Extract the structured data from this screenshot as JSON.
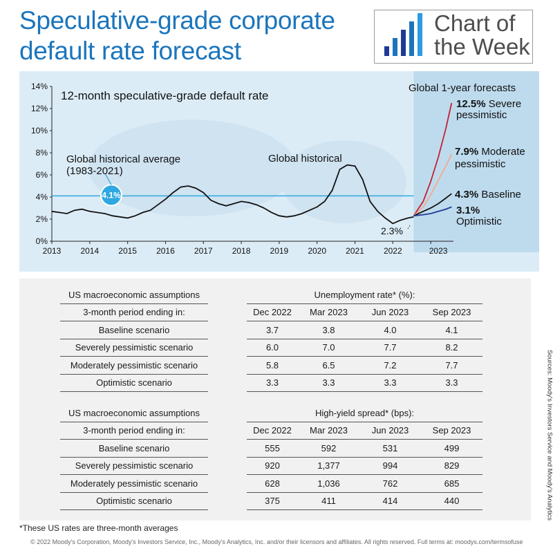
{
  "title": "Speculative-grade corporate default rate forecast",
  "badge": {
    "line1": "Chart of",
    "line2": "the Week"
  },
  "chart_data": {
    "type": "line",
    "title": "12-month speculative-grade default rate",
    "forecast_title": "Global 1-year forecasts",
    "ylim": [
      0,
      14
    ],
    "xlim": [
      2013,
      2023.6
    ],
    "yticks": [
      "0%",
      "2%",
      "4%",
      "6%",
      "8%",
      "10%",
      "12%",
      "14%"
    ],
    "xticks": [
      "2013",
      "2014",
      "2015",
      "2016",
      "2017",
      "2018",
      "2019",
      "2020",
      "2021",
      "2022",
      "2023"
    ],
    "historical_average": {
      "label_line1": "Global historical average",
      "label_line2": "(1983-2021)",
      "value": 4.1,
      "value_label": "4.1%"
    },
    "historical_label": "Global historical",
    "low_label": "2.3%",
    "series": [
      {
        "name": "Global historical",
        "color": "#111111",
        "x": [
          2013.0,
          2013.2,
          2013.4,
          2013.6,
          2013.8,
          2014.0,
          2014.2,
          2014.4,
          2014.6,
          2014.8,
          2015.0,
          2015.2,
          2015.4,
          2015.6,
          2015.8,
          2016.0,
          2016.2,
          2016.4,
          2016.6,
          2016.8,
          2017.0,
          2017.2,
          2017.4,
          2017.6,
          2017.8,
          2018.0,
          2018.2,
          2018.4,
          2018.6,
          2018.8,
          2019.0,
          2019.2,
          2019.4,
          2019.6,
          2019.8,
          2020.0,
          2020.2,
          2020.4,
          2020.6,
          2020.8,
          2021.0,
          2021.2,
          2021.4,
          2021.6,
          2021.8,
          2022.0,
          2022.2,
          2022.4,
          2022.55
        ],
        "y": [
          2.7,
          2.6,
          2.5,
          2.8,
          2.9,
          2.7,
          2.6,
          2.5,
          2.3,
          2.2,
          2.1,
          2.3,
          2.6,
          2.8,
          3.3,
          3.8,
          4.4,
          4.9,
          5.0,
          4.8,
          4.4,
          3.7,
          3.4,
          3.2,
          3.4,
          3.6,
          3.5,
          3.3,
          3.0,
          2.6,
          2.3,
          2.2,
          2.3,
          2.5,
          2.8,
          3.1,
          3.6,
          4.6,
          6.5,
          6.9,
          6.8,
          5.6,
          3.6,
          2.7,
          2.1,
          1.6,
          1.9,
          2.1,
          2.2
        ]
      },
      {
        "name": "Severe pessimistic",
        "value_label": "12.5%",
        "label": "Severe",
        "label2": "pessimistic",
        "color": "#c42032",
        "x": [
          2022.55,
          2022.8,
          2023.0,
          2023.2,
          2023.4,
          2023.55
        ],
        "y": [
          2.3,
          3.6,
          5.4,
          7.6,
          10.2,
          12.5
        ]
      },
      {
        "name": "Moderate pessimistic",
        "value_label": "7.9%",
        "label": "Moderate",
        "label2": "pessimistic",
        "color": "#f4a98e",
        "x": [
          2022.55,
          2022.8,
          2023.0,
          2023.2,
          2023.4,
          2023.55
        ],
        "y": [
          2.3,
          3.1,
          4.2,
          5.5,
          6.8,
          7.9
        ]
      },
      {
        "name": "Baseline",
        "value_label": "4.3%",
        "label": "Baseline",
        "color": "#111111",
        "x": [
          2022.55,
          2022.8,
          2023.0,
          2023.2,
          2023.4,
          2023.55
        ],
        "y": [
          2.3,
          2.7,
          3.0,
          3.4,
          3.9,
          4.3
        ]
      },
      {
        "name": "Optimistic",
        "value_label": "3.1%",
        "label": "Optimistic",
        "color": "#1f3a93",
        "x": [
          2022.55,
          2022.8,
          2023.0,
          2023.2,
          2023.4,
          2023.55
        ],
        "y": [
          2.3,
          2.4,
          2.5,
          2.7,
          2.9,
          3.1
        ]
      }
    ]
  },
  "tables": [
    {
      "row_header": "US macroeconomic assumptions",
      "period_label": "3-month period ending in:",
      "metric": "Unemployment rate* (%):",
      "columns": [
        "Dec 2022",
        "Mar 2023",
        "Jun 2023",
        "Sep 2023"
      ],
      "rows": [
        {
          "label": "Baseline scenario",
          "values": [
            "3.7",
            "3.8",
            "4.0",
            "4.1"
          ]
        },
        {
          "label": "Severely pessimistic scenario",
          "values": [
            "6.0",
            "7.0",
            "7.7",
            "8.2"
          ]
        },
        {
          "label": "Moderately pessimistic scenario",
          "values": [
            "5.8",
            "6.5",
            "7.2",
            "7.7"
          ]
        },
        {
          "label": "Optimistic scenario",
          "values": [
            "3.3",
            "3.3",
            "3.3",
            "3.3"
          ]
        }
      ]
    },
    {
      "row_header": "US macroeconomic assumptions",
      "period_label": "3-month period ending in:",
      "metric": "High-yield spread* (bps):",
      "columns": [
        "Dec 2022",
        "Mar 2023",
        "Jun 2023",
        "Sep 2023"
      ],
      "rows": [
        {
          "label": "Baseline scenario",
          "values": [
            "555",
            "592",
            "531",
            "499"
          ]
        },
        {
          "label": "Severely pessimistic scenario",
          "values": [
            "920",
            "1,377",
            "994",
            "829"
          ]
        },
        {
          "label": "Moderately pessimistic scenario",
          "values": [
            "628",
            "1,036",
            "762",
            "685"
          ]
        },
        {
          "label": "Optimistic scenario",
          "values": [
            "375",
            "411",
            "414",
            "440"
          ]
        }
      ]
    }
  ],
  "footnote": "*These US rates are three-month averages",
  "copyright": "© 2022 Moody's Corporation, Moody's Investors Service, Inc., Moody's Analytics, Inc. and/or their licensors and affiliates. All rights reserved. Full terms at: moodys.com/termsofuse",
  "sources": "Sources: Moody's Investors Service and Moody's Analytics"
}
